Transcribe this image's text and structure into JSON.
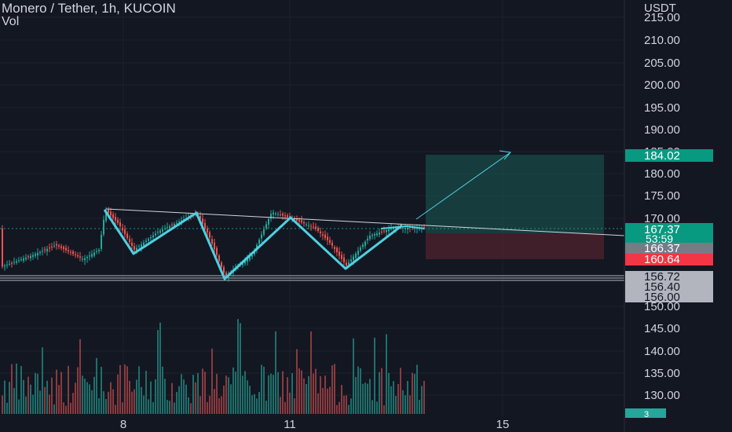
{
  "header": {
    "symbol_title": "Monero / Tether, 1h, KUCOIN",
    "volume_label": "Vol"
  },
  "price_axis": {
    "currency": "USDT",
    "ticks": [
      "215.00",
      "210.00",
      "205.00",
      "200.00",
      "195.00",
      "190.00",
      "185.00",
      "180.00",
      "175.00",
      "170.00",
      "150.00",
      "145.00",
      "140.00",
      "135.00",
      "130.00"
    ]
  },
  "time_axis": {
    "ticks": [
      "8",
      "11",
      "15"
    ]
  },
  "price_tags": {
    "target": {
      "label": "184.02",
      "color": "#089981"
    },
    "last": {
      "label": "167.37",
      "color": "#089981"
    },
    "countdown": {
      "label": "53:59",
      "color": "#089981"
    },
    "entry": {
      "label": "166.37",
      "color": "#787b86"
    },
    "stop": {
      "label": "160.64",
      "color": "#f23645"
    },
    "h1": {
      "label": "156.72",
      "color": "#b2b5be"
    },
    "h2": {
      "label": "156.40",
      "color": "#b2b5be"
    },
    "h3": {
      "label": "156.00",
      "color": "#b2b5be"
    },
    "volume": {
      "label": "3",
      "color": "#26a69a"
    }
  },
  "colors": {
    "background": "#131722",
    "up": "#26a69a",
    "down": "#ef5350",
    "pattern": "#4dd0e1",
    "profit_zone": "#1c5b54",
    "loss_zone": "#5b2430"
  },
  "chart_data": {
    "type": "candlestick",
    "title": "Monero / Tether, 1h, KUCOIN",
    "ylabel": "USDT",
    "y_range": [
      127.0,
      216.0
    ],
    "x_ticks": [
      "8",
      "11",
      "15"
    ],
    "scale_breaks": "price axis visually compressed between 170 and 150",
    "zigzag_pattern_prices": [
      172.0,
      163.0,
      172.0,
      156.0,
      171.0,
      161.0,
      168.0
    ],
    "descending_trendline_prices": [
      172.0,
      167.0
    ],
    "support_levels": [
      156.72,
      156.4,
      156.0
    ],
    "position": {
      "entry": 166.37,
      "target": 184.02,
      "stop": 160.64
    },
    "projection_target": 185.0,
    "last_price": 167.37,
    "countdown": "53:59",
    "volume_last": 3
  }
}
